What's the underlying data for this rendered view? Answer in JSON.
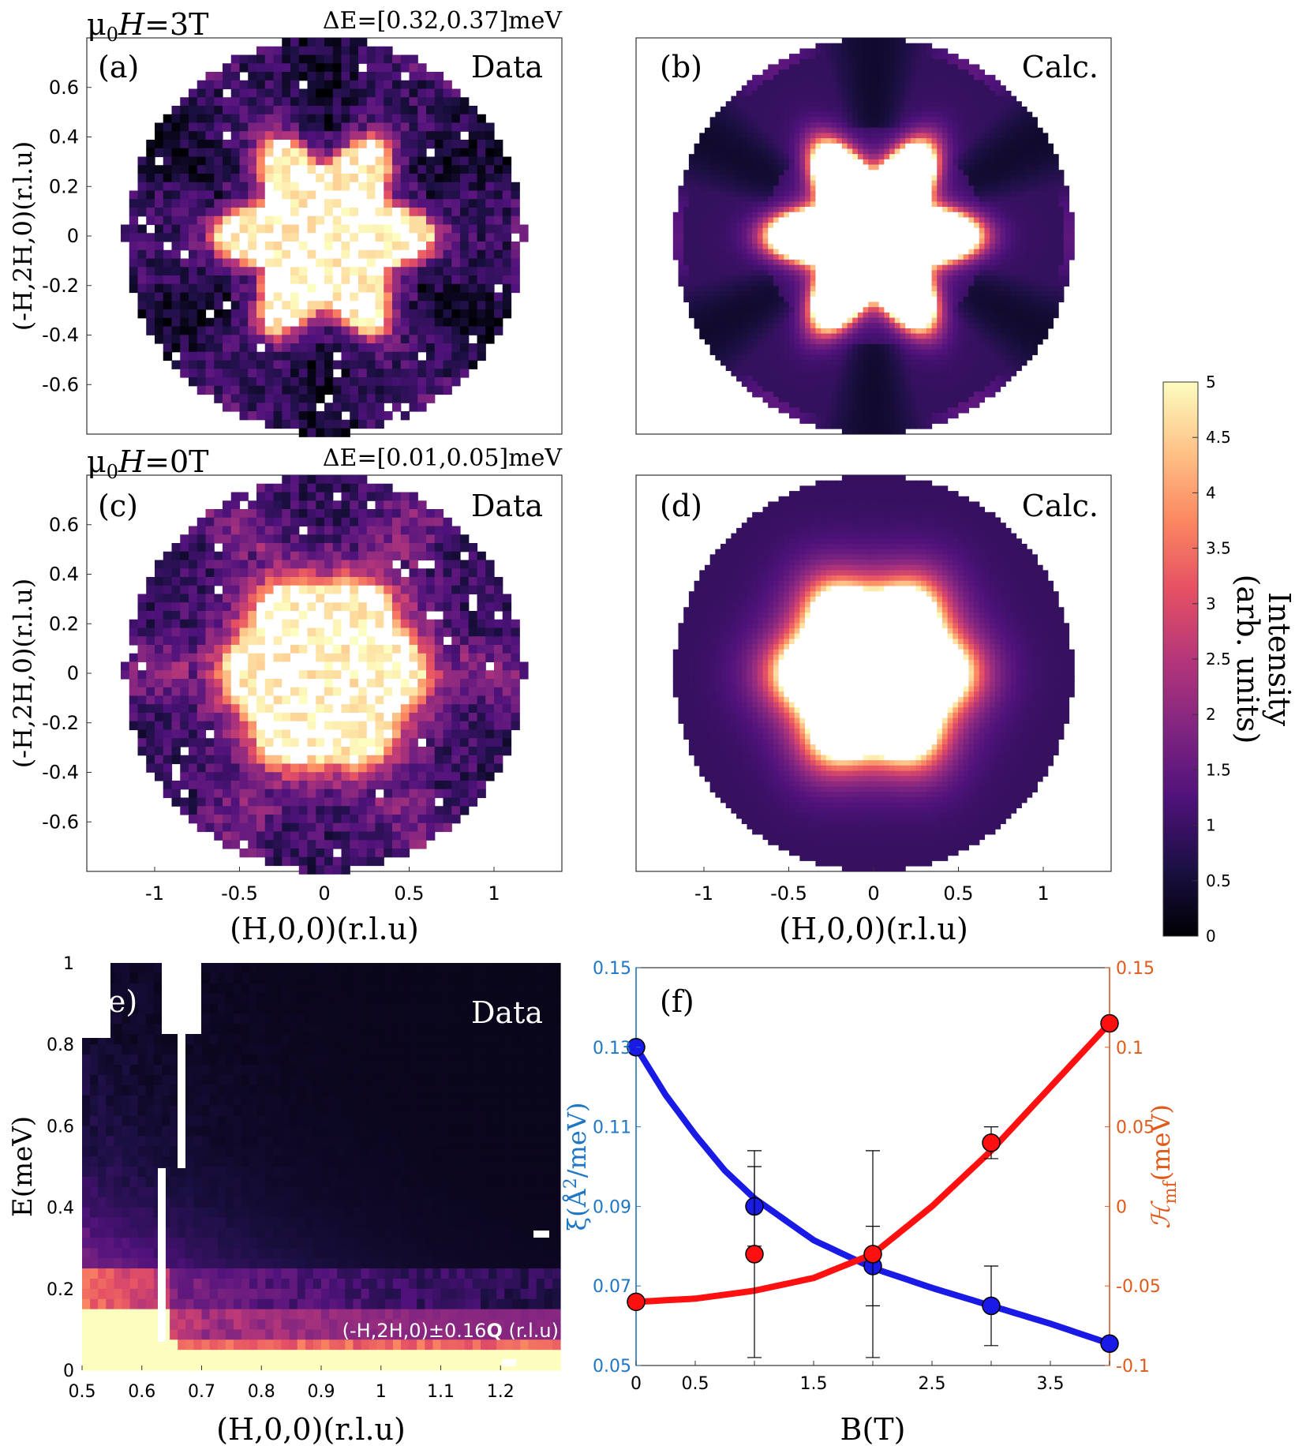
{
  "colors": {
    "axis": "#333333",
    "xi_axis": "#1f77c4",
    "hmf_axis": "#e05a1a",
    "xi_series": "#1a1ae6",
    "hmf_series": "#ff1010",
    "marker_edge": "#000000"
  },
  "colormap": {
    "name": "magma",
    "stops": [
      "#000004",
      "#1c1044",
      "#4f127b",
      "#812581",
      "#b5367a",
      "#e55064",
      "#fb8761",
      "#fec287",
      "#fcfdbf",
      "#ffffff"
    ]
  },
  "colorbar": {
    "label_line1": "Intensity",
    "label_line2": "(arb. units)",
    "range": [
      0,
      5
    ],
    "ticks": [
      "0",
      "0.5",
      "1",
      "1.5",
      "2",
      "2.5",
      "3",
      "3.5",
      "4",
      "4.5",
      "5"
    ]
  },
  "map_axes": {
    "y_label": "(-H,2H,0)(r.l.u)",
    "x_label": "(H,0,0)(r.l.u)",
    "y_ticks": [
      "0.6",
      "0.4",
      "0.2",
      "0",
      "-0.2",
      "-0.4",
      "-0.6"
    ],
    "x_ticks": [
      "-1",
      "-0.5",
      "0",
      "0.5",
      "1"
    ]
  },
  "chart_data": [
    {
      "panel": "a",
      "type": "heatmap",
      "title_left": "μ0H=3T",
      "field_label": "μ",
      "field_sub": "0",
      "field_var": "H",
      "field_value": "=3T",
      "energy": "ΔE=[0.32,0.37]meV",
      "letter": "(a)",
      "tag": "Data",
      "pattern": "hexagonal star, six intensity minima",
      "xlim": [
        -1.4,
        1.4
      ],
      "ylim": [
        -0.8,
        0.8
      ]
    },
    {
      "panel": "b",
      "type": "heatmap",
      "letter": "(b)",
      "tag": "Calc.",
      "pattern": "hexagonal star, six intensity minima",
      "xlim": [
        -1.4,
        1.4
      ],
      "ylim": [
        -0.8,
        0.8
      ]
    },
    {
      "panel": "c",
      "type": "heatmap",
      "field_label": "μ",
      "field_sub": "0",
      "field_var": "H",
      "field_value": "=0T",
      "energy": "ΔE=[0.01,0.05]meV",
      "letter": "(c)",
      "tag": "Data",
      "pattern": "isotropic ring",
      "xlim": [
        -1.4,
        1.4
      ],
      "ylim": [
        -0.8,
        0.8
      ]
    },
    {
      "panel": "d",
      "type": "heatmap",
      "letter": "(d)",
      "tag": "Calc.",
      "pattern": "isotropic ring",
      "xlim": [
        -1.4,
        1.4
      ],
      "ylim": [
        -0.8,
        0.8
      ]
    },
    {
      "panel": "e",
      "type": "heatmap",
      "letter": "(e)",
      "tag": "Data",
      "cut_label": "(-H,2H,0)±0.16",
      "cut_bold": "Q",
      "cut_units": " (r.l.u)",
      "xlabel": "(H,0,0)(r.l.u)",
      "ylabel": "E(meV)",
      "xlim": [
        0.5,
        1.3
      ],
      "ylim": [
        0,
        1
      ],
      "x_ticks": [
        "0.5",
        "0.6",
        "0.7",
        "0.8",
        "0.9",
        "1",
        "1.1",
        "1.2"
      ],
      "y_ticks": [
        "0",
        "0.2",
        "0.4",
        "0.6",
        "0.8",
        "1"
      ]
    },
    {
      "panel": "f",
      "type": "scatter",
      "letter": "(f)",
      "xlabel": "B(T)",
      "ylabel_left": "ξ(Å²/meV)",
      "ylabel_left_base": "ξ(Å",
      "ylabel_left_sup": "2",
      "ylabel_left_end": "/meV)",
      "ylabel_right": "ℋmf(meV)",
      "ylabel_right_base": "ℋ",
      "ylabel_right_sub": "mf",
      "ylabel_right_end": "(meV)",
      "xlim": [
        0,
        4
      ],
      "ylim_left": [
        0.05,
        0.15
      ],
      "ylim_right": [
        -0.1,
        0.15
      ],
      "x_ticks": [
        "0",
        "0.5",
        "1.5",
        "2.5",
        "3.5"
      ],
      "y_ticks_left": [
        "0.05",
        "0.07",
        "0.09",
        "0.11",
        "0.13",
        "0.15"
      ],
      "y_ticks_right": [
        "-0.1",
        "-0.05",
        "0",
        "0.05",
        "0.1",
        "0.15"
      ],
      "series": [
        {
          "name": "xi",
          "axis": "left",
          "x": [
            0,
            1,
            2,
            3,
            4
          ],
          "y": [
            0.13,
            0.09,
            0.075,
            0.065,
            0.0555
          ],
          "err": [
            0,
            0.01,
            0.01,
            0.01,
            0
          ]
        },
        {
          "name": "Hmf",
          "axis": "right",
          "x": [
            0,
            1,
            2,
            3,
            4
          ],
          "y": [
            -0.06,
            -0.03,
            -0.03,
            0.04,
            0.115
          ],
          "err": [
            0,
            0.065,
            0.065,
            0.01,
            0.003
          ]
        }
      ],
      "fits": [
        {
          "name": "xi_fit",
          "axis": "left",
          "x": [
            0,
            0.25,
            0.5,
            0.75,
            1,
            1.5,
            2,
            2.5,
            3,
            3.5,
            4
          ],
          "y": [
            0.13,
            0.118,
            0.108,
            0.099,
            0.092,
            0.0815,
            0.0745,
            0.0695,
            0.065,
            0.0605,
            0.0555
          ]
        },
        {
          "name": "hmf_fit",
          "axis": "right",
          "x": [
            0,
            0.5,
            1,
            1.5,
            2,
            2.5,
            3,
            3.5,
            4
          ],
          "y": [
            -0.06,
            -0.058,
            -0.053,
            -0.045,
            -0.03,
            0.0,
            0.035,
            0.075,
            0.115
          ]
        }
      ]
    }
  ]
}
